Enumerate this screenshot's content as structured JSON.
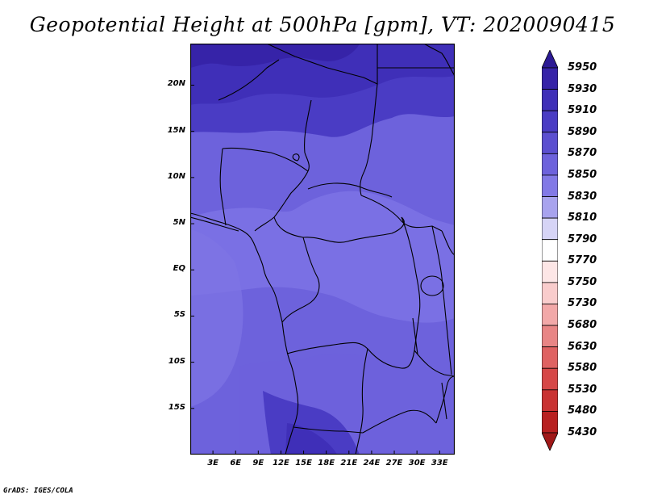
{
  "title": "Geopotential Height at 500hPa [gpm], VT: 2020090415",
  "footer": "GrADS: IGES/COLA",
  "map": {
    "lon_range": [
      0,
      35
    ],
    "lat_range": [
      -20,
      24.5
    ],
    "lat_ticks": [
      {
        "value": 20,
        "label": "20N"
      },
      {
        "value": 15,
        "label": "15N"
      },
      {
        "value": 10,
        "label": "10N"
      },
      {
        "value": 5,
        "label": "5N"
      },
      {
        "value": 0,
        "label": "EQ"
      },
      {
        "value": -5,
        "label": "5S"
      },
      {
        "value": -10,
        "label": "10S"
      },
      {
        "value": -15,
        "label": "15S"
      }
    ],
    "lon_ticks": [
      {
        "value": 3,
        "label": "3E"
      },
      {
        "value": 6,
        "label": "6E"
      },
      {
        "value": 9,
        "label": "9E"
      },
      {
        "value": 12,
        "label": "12E"
      },
      {
        "value": 15,
        "label": "15E"
      },
      {
        "value": 18,
        "label": "18E"
      },
      {
        "value": 21,
        "label": "21E"
      },
      {
        "value": 24,
        "label": "24E"
      },
      {
        "value": 27,
        "label": "27E"
      },
      {
        "value": 30,
        "label": "30E"
      },
      {
        "value": 33,
        "label": "33E"
      }
    ]
  },
  "colorbar": {
    "levels": [
      "5950",
      "5930",
      "5910",
      "5890",
      "5870",
      "5850",
      "5830",
      "5810",
      "5790",
      "5770",
      "5750",
      "5730",
      "5680",
      "5630",
      "5580",
      "5530",
      "5480",
      "5430"
    ],
    "colors": [
      "#2c1a94",
      "#3623a8",
      "#3f2fb8",
      "#4a3cc4",
      "#5b4fd0",
      "#6d62dc",
      "#8279e6",
      "#a8a3ee",
      "#d6d4f6",
      "#ffffff",
      "#fde6e6",
      "#f9cccc",
      "#f2a8a8",
      "#e88585",
      "#df6262",
      "#d64848",
      "#c93232",
      "#b82020",
      "#a01818"
    ]
  }
}
